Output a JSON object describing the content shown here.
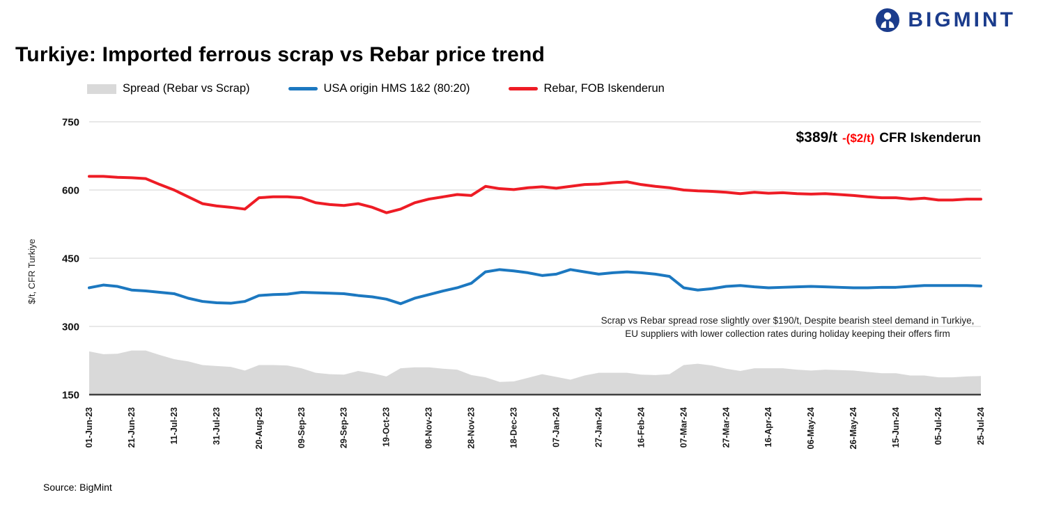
{
  "header": {
    "title": "Turkiye: Imported ferrous scrap vs Rebar price trend",
    "brand": "BIGMINT"
  },
  "legend": {
    "items": [
      {
        "label": "Spread (Rebar vs Scrap)",
        "color": "#d9d9d9",
        "shape": "area"
      },
      {
        "label": "USA origin HMS 1&2 (80:20)",
        "color": "#1c78c0",
        "shape": "line"
      },
      {
        "label": "Rebar, FOB Iskenderun",
        "color": "#ee1c25",
        "shape": "line"
      }
    ]
  },
  "annotations": {
    "price": {
      "value": "$389/t",
      "change": "-($2/t)",
      "suffix": "CFR Iskenderun"
    },
    "note": "Scrap vs Rebar spread rose slightly over $190/t, Despite bearish steel demand in Turkiye, EU suppliers with lower collection rates during holiday keeping their offers firm"
  },
  "source": {
    "text": "Source: BigMint"
  },
  "chart_data": {
    "type": "line",
    "title": "Turkiye: Imported ferrous scrap vs Rebar price trend",
    "ylabel": "$/t, CFR Turkiye",
    "ylim": [
      150,
      750
    ],
    "yticks": [
      150,
      300,
      450,
      600,
      750
    ],
    "grid": "horizontal",
    "legend_position": "top",
    "categories": [
      "01-Jun-23",
      "21-Jun-23",
      "11-Jul-23",
      "31-Jul-23",
      "20-Aug-23",
      "09-Sep-23",
      "29-Sep-23",
      "19-Oct-23",
      "08-Nov-23",
      "28-Nov-23",
      "18-Dec-23",
      "07-Jan-24",
      "27-Jan-24",
      "16-Feb-24",
      "07-Mar-24",
      "27-Mar-24",
      "16-Apr-24",
      "06-May-24",
      "26-May-24",
      "15-Jun-24",
      "05-Jul-24",
      "25-Jul-24"
    ],
    "points_per_tick_interval": 3,
    "series": [
      {
        "id": "spread",
        "name": "Spread (Rebar vs Scrap)",
        "type": "area",
        "color": "#d9d9d9",
        "values": [
          245,
          239,
          240,
          247,
          247,
          237,
          228,
          223,
          215,
          213,
          211,
          203,
          215,
          215,
          214,
          208,
          198,
          195,
          194,
          202,
          197,
          190,
          208,
          210,
          210,
          207,
          205,
          193,
          188,
          178,
          179,
          187,
          195,
          189,
          183,
          192,
          198,
          198,
          198,
          194,
          193,
          195,
          215,
          218,
          214,
          207,
          202,
          208,
          208,
          208,
          205,
          203,
          205,
          204,
          203,
          200,
          197,
          197,
          192,
          192,
          188,
          188,
          190,
          191
        ]
      },
      {
        "id": "scrap",
        "name": "USA origin HMS 1&2 (80:20)",
        "type": "line",
        "color": "#1c78c0",
        "values": [
          385,
          391,
          388,
          380,
          378,
          375,
          372,
          362,
          355,
          352,
          351,
          355,
          368,
          370,
          371,
          375,
          374,
          373,
          372,
          368,
          365,
          360,
          350,
          362,
          370,
          378,
          385,
          395,
          420,
          425,
          422,
          418,
          412,
          415,
          425,
          420,
          415,
          418,
          420,
          418,
          415,
          410,
          385,
          380,
          383,
          388,
          390,
          387,
          385,
          386,
          387,
          388,
          387,
          386,
          385,
          385,
          386,
          386,
          388,
          390,
          390,
          390,
          390,
          389
        ]
      },
      {
        "id": "rebar",
        "name": "Rebar, FOB Iskenderun",
        "type": "line",
        "color": "#ee1c25",
        "values": [
          630,
          630,
          628,
          627,
          625,
          612,
          600,
          585,
          570,
          565,
          562,
          558,
          583,
          585,
          585,
          583,
          572,
          568,
          566,
          570,
          562,
          550,
          558,
          572,
          580,
          585,
          590,
          588,
          608,
          603,
          601,
          605,
          607,
          604,
          608,
          612,
          613,
          616,
          618,
          612,
          608,
          605,
          600,
          598,
          597,
          595,
          592,
          595,
          593,
          594,
          592,
          591,
          592,
          590,
          588,
          585,
          583,
          583,
          580,
          582,
          578,
          578,
          580,
          580
        ]
      }
    ]
  }
}
